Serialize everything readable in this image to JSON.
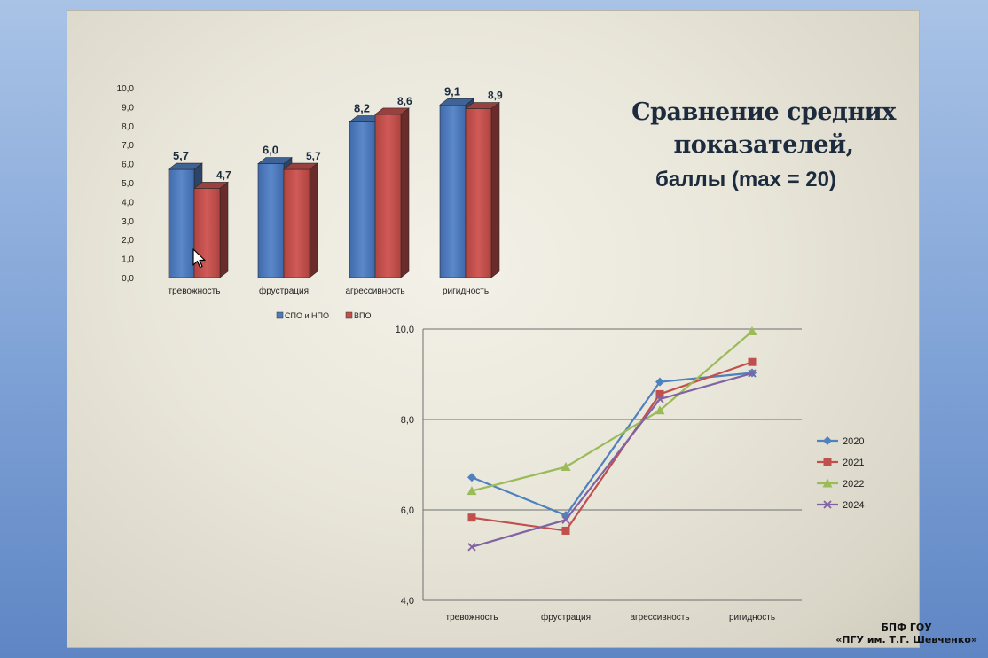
{
  "slide": {
    "title_line1": "Сравнение средних",
    "title_line2": "показателей,",
    "title_line3": "баллы  (max = 20)"
  },
  "footer": {
    "line1": "БПФ ГОУ",
    "line2": "«ПГУ им. Т.Г. Шевченко»"
  },
  "chart_data": [
    {
      "type": "bar",
      "categories": [
        "тревожность",
        "фрустрация",
        "агрессивность",
        "ригидность"
      ],
      "series": [
        {
          "name": "СПО и НПО",
          "values": [
            5.7,
            6.0,
            8.2,
            9.1
          ],
          "color": "#4f7bbd"
        },
        {
          "name": "ВПО",
          "values": [
            4.7,
            5.7,
            8.6,
            8.9
          ],
          "color": "#c0504d"
        }
      ],
      "yticks": [
        "0,0",
        "1,0",
        "2,0",
        "3,0",
        "4,0",
        "5,0",
        "6,0",
        "7,0",
        "8,0",
        "9,0",
        "10,0"
      ],
      "value_labels": [
        [
          "5,7",
          "6,0",
          "8,2",
          "9,1"
        ],
        [
          "4,7",
          "5,7",
          "8,6",
          "8,9"
        ]
      ],
      "ylim": [
        0,
        10
      ],
      "grid": false,
      "legend": "bottom"
    },
    {
      "type": "line",
      "categories": [
        "тревожность",
        "фрустрация",
        "агрессивность",
        "ригидность"
      ],
      "series": [
        {
          "name": "2020",
          "values": [
            6.72,
            5.88,
            8.83,
            9.03
          ],
          "color": "#4f81bd",
          "marker": "diamond"
        },
        {
          "name": "2021",
          "values": [
            5.83,
            5.54,
            8.56,
            9.27
          ],
          "color": "#c0504d",
          "marker": "square"
        },
        {
          "name": "2022",
          "values": [
            6.42,
            6.95,
            8.2,
            9.95
          ],
          "color": "#9bbb59",
          "marker": "triangle"
        },
        {
          "name": "2024",
          "values": [
            5.18,
            5.78,
            8.45,
            9.02
          ],
          "color": "#8064a2",
          "marker": "x"
        }
      ],
      "yticks": [
        "4,0",
        "6,0",
        "8,0",
        "10,0"
      ],
      "ylim": [
        4,
        10
      ],
      "grid": true,
      "legend": "right"
    }
  ]
}
